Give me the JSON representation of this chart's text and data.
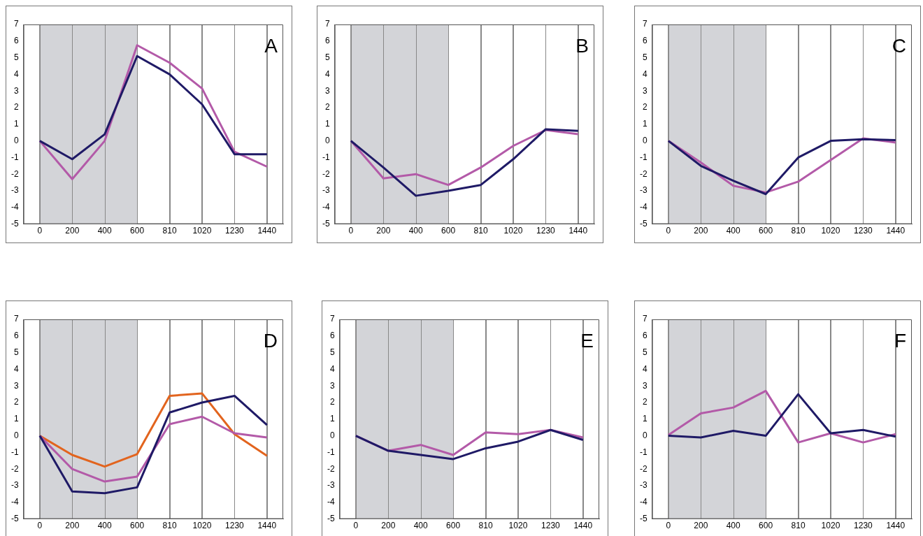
{
  "chart_data": [
    {
      "type": "line",
      "categories": [
        "0",
        "200",
        "400",
        "600",
        "810",
        "1020",
        "1230",
        "1440"
      ],
      "ylim": [
        -5,
        7
      ],
      "yticks": [
        -5,
        -4,
        -3,
        -2,
        -1,
        0,
        1,
        2,
        3,
        4,
        5,
        6,
        7
      ],
      "grid": "x",
      "legend": false,
      "marker": "none",
      "annotations": [
        "A"
      ],
      "bands": [
        {
          "axis": "x",
          "from": "0",
          "to": "600",
          "color": "#d3d4d8"
        }
      ],
      "series": [
        {
          "color": "#1f1a66",
          "values": [
            0,
            -1.1,
            0.4,
            5.1,
            4.0,
            2.2,
            -0.8,
            -0.8
          ]
        },
        {
          "color": "#b35aa8",
          "values": [
            0,
            -2.3,
            0.0,
            5.75,
            4.7,
            3.15,
            -0.65,
            -1.55
          ]
        }
      ]
    },
    {
      "type": "line",
      "categories": [
        "0",
        "200",
        "400",
        "600",
        "810",
        "1020",
        "1230",
        "1440"
      ],
      "ylim": [
        -5,
        7
      ],
      "yticks": [
        -5,
        -4,
        -3,
        -2,
        -1,
        0,
        1,
        2,
        3,
        4,
        5,
        6,
        7
      ],
      "grid": "x",
      "legend": false,
      "marker": "none",
      "annotations": [
        "B"
      ],
      "bands": [
        {
          "axis": "x",
          "from": "0",
          "to": "600",
          "color": "#d3d4d8"
        }
      ],
      "series": [
        {
          "color": "#1f1a66",
          "values": [
            0,
            -1.6,
            -3.3,
            -3.0,
            -2.65,
            -1.1,
            0.7,
            0.6
          ]
        },
        {
          "color": "#b35aa8",
          "values": [
            0,
            -2.25,
            -2.0,
            -2.65,
            -1.6,
            -0.3,
            0.65,
            0.4
          ]
        }
      ]
    },
    {
      "type": "line",
      "categories": [
        "0",
        "200",
        "400",
        "600",
        "810",
        "1020",
        "1230",
        "1440"
      ],
      "ylim": [
        -5,
        7
      ],
      "yticks": [
        -5,
        -4,
        -3,
        -2,
        -1,
        0,
        1,
        2,
        3,
        4,
        5,
        6,
        7
      ],
      "grid": "x",
      "legend": false,
      "marker": "none",
      "annotations": [
        "C"
      ],
      "bands": [
        {
          "axis": "x",
          "from": "0",
          "to": "600",
          "color": "#d3d4d8"
        }
      ],
      "series": [
        {
          "color": "#1f1a66",
          "values": [
            0,
            -1.5,
            -2.4,
            -3.2,
            -1.0,
            0.0,
            0.1,
            0.05
          ]
        },
        {
          "color": "#b35aa8",
          "values": [
            0,
            -1.3,
            -2.7,
            -3.1,
            -2.45,
            -1.15,
            0.15,
            -0.1
          ]
        }
      ]
    },
    {
      "type": "line",
      "categories": [
        "0",
        "200",
        "400",
        "600",
        "810",
        "1020",
        "1230",
        "1440"
      ],
      "ylim": [
        -5,
        7
      ],
      "yticks": [
        -5,
        -4,
        -3,
        -2,
        -1,
        0,
        1,
        2,
        3,
        4,
        5,
        6,
        7
      ],
      "grid": "x",
      "legend": false,
      "marker": "none",
      "annotations": [
        "D"
      ],
      "bands": [
        {
          "axis": "x",
          "from": "0",
          "to": "600",
          "color": "#d3d4d8"
        }
      ],
      "series": [
        {
          "color": "#1f1a66",
          "values": [
            0,
            -3.35,
            -3.45,
            -3.1,
            1.4,
            2.0,
            2.4,
            0.65
          ]
        },
        {
          "color": "#b35aa8",
          "values": [
            0,
            -2.0,
            -2.75,
            -2.45,
            0.7,
            1.15,
            0.15,
            -0.1
          ]
        },
        {
          "color": "#e2641e",
          "values": [
            0,
            -1.15,
            -1.85,
            -1.1,
            2.4,
            2.55,
            0.1,
            -1.2
          ]
        }
      ]
    },
    {
      "type": "line",
      "categories": [
        "0",
        "200",
        "400",
        "600",
        "810",
        "1020",
        "1230",
        "1440"
      ],
      "ylim": [
        -5,
        7
      ],
      "yticks": [
        -5,
        -4,
        -3,
        -2,
        -1,
        0,
        1,
        2,
        3,
        4,
        5,
        6,
        7
      ],
      "grid": "x",
      "legend": false,
      "marker": "none",
      "annotations": [
        "E"
      ],
      "bands": [
        {
          "axis": "x",
          "from": "0",
          "to": "600",
          "color": "#d3d4d8"
        }
      ],
      "series": [
        {
          "color": "#1f1a66",
          "values": [
            0,
            -0.9,
            -1.15,
            -1.4,
            -0.75,
            -0.35,
            0.35,
            -0.25
          ]
        },
        {
          "color": "#b35aa8",
          "values": [
            0,
            -0.9,
            -0.55,
            -1.15,
            0.2,
            0.1,
            0.35,
            -0.1
          ]
        }
      ]
    },
    {
      "type": "line",
      "categories": [
        "0",
        "200",
        "400",
        "600",
        "810",
        "1020",
        "1230",
        "1440"
      ],
      "ylim": [
        -5,
        7
      ],
      "yticks": [
        -5,
        -4,
        -3,
        -2,
        -1,
        0,
        1,
        2,
        3,
        4,
        5,
        6,
        7
      ],
      "grid": "x",
      "legend": false,
      "marker": "none",
      "annotations": [
        "F"
      ],
      "bands": [
        {
          "axis": "x",
          "from": "0",
          "to": "600",
          "color": "#d3d4d8"
        }
      ],
      "series": [
        {
          "color": "#1f1a66",
          "values": [
            0,
            -0.1,
            0.3,
            0.0,
            2.5,
            0.15,
            0.35,
            -0.05
          ]
        },
        {
          "color": "#b35aa8",
          "values": [
            0.05,
            1.35,
            1.7,
            2.7,
            -0.4,
            0.15,
            -0.4,
            0.1
          ]
        }
      ]
    }
  ]
}
